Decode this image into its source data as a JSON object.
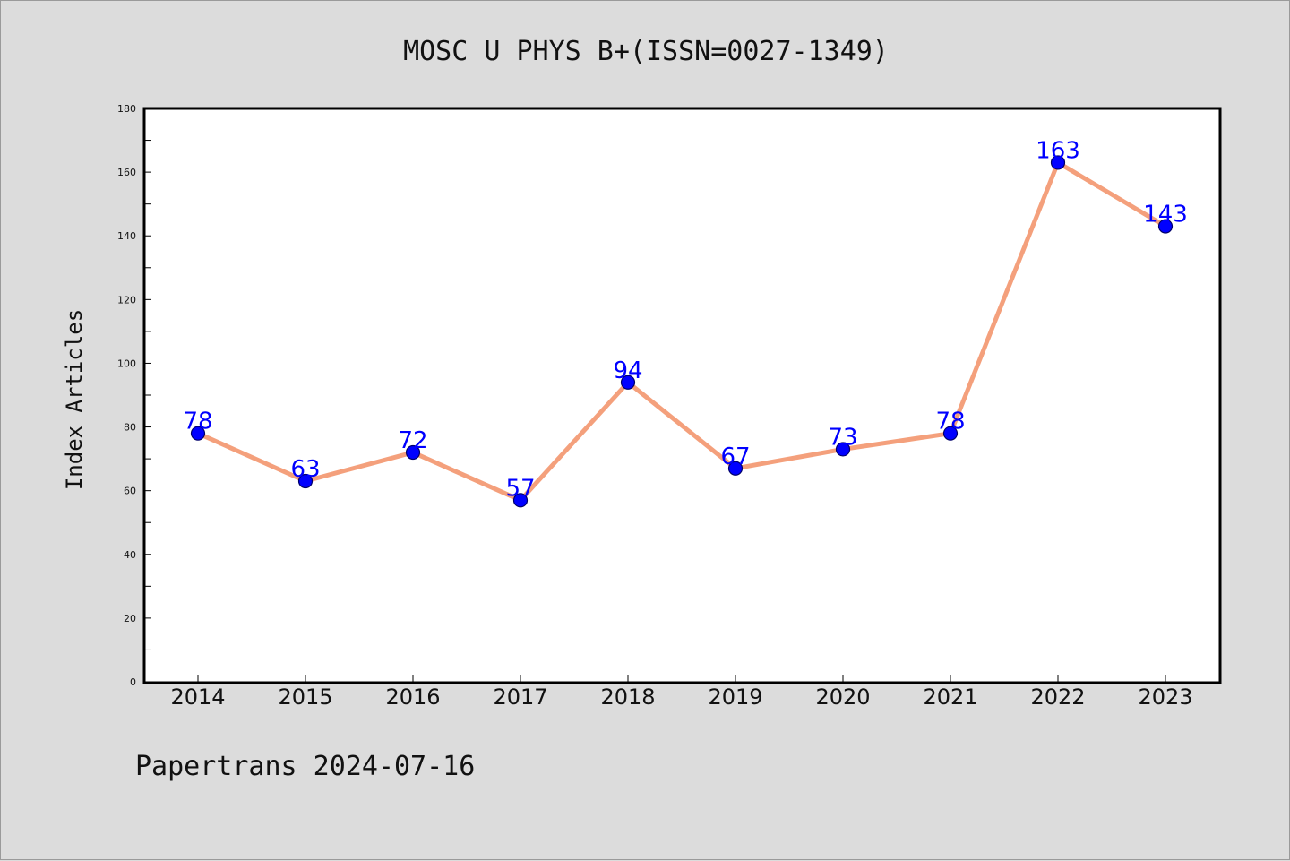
{
  "title": "MOSC U PHYS B+(ISSN=0027-1349)",
  "footer": "Papertrans 2024-07-16",
  "colors": {
    "background": "#dcdcdc",
    "plot_background": "#ffffff",
    "line": "#f4a07c",
    "marker": "#0000ff",
    "data_label": "#0000ff"
  },
  "chart_data": {
    "type": "line",
    "title": "MOSC U PHYS B+(ISSN=0027-1349)",
    "xlabel": "",
    "ylabel": "Index Articles",
    "categories": [
      "2014",
      "2015",
      "2016",
      "2017",
      "2018",
      "2019",
      "2020",
      "2021",
      "2022",
      "2023"
    ],
    "series": [
      {
        "values": [
          78,
          63,
          72,
          57,
          94,
          67,
          73,
          78,
          163,
          143
        ]
      }
    ],
    "ylim": [
      0,
      180
    ],
    "yticks": [
      0,
      20,
      40,
      60,
      80,
      100,
      120,
      140,
      160,
      180
    ],
    "grid": false,
    "legend": "none",
    "data_labels": true
  }
}
